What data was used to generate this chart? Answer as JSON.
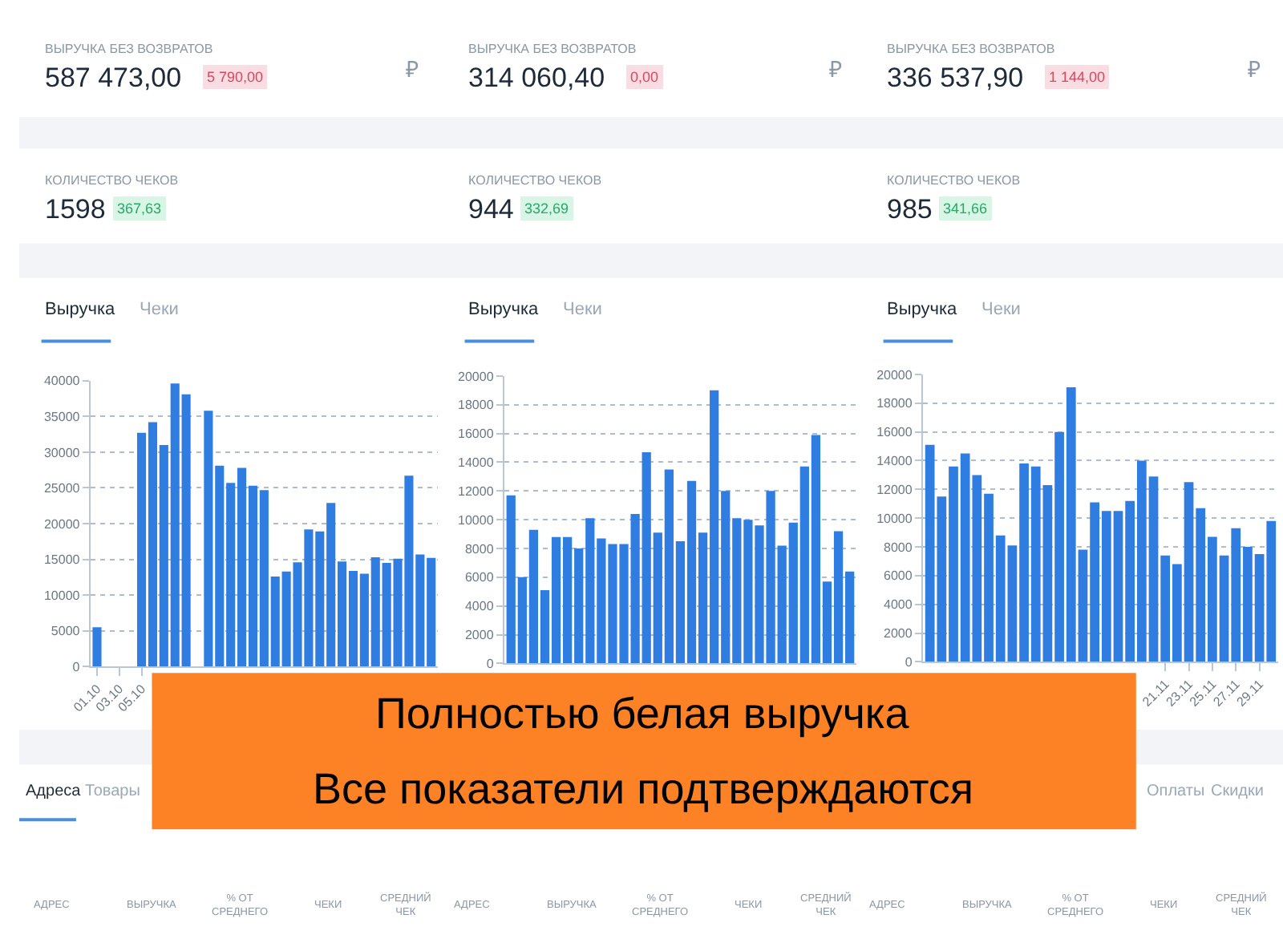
{
  "chart_data": [
    {
      "type": "other",
      "annotations": [
        "ВЫРУЧКА БЕЗ ВОЗВРАТОВ",
        "587 473,00",
        "5 790,00",
        "₽",
        "КОЛИЧЕСТВО ЧЕКОВ",
        "1598",
        "367,63"
      ]
    },
    {
      "type": "other",
      "annotations": [
        "ВЫРУЧКА БЕЗ ВОЗВРАТОВ",
        "314 060,40",
        "0,00",
        "₽",
        "КОЛИЧЕСТВО ЧЕКОВ",
        "944",
        "332,69"
      ]
    },
    {
      "type": "other",
      "annotations": [
        "ВЫРУЧКА БЕЗ ВОЗВРАТОВ",
        "336 537,90",
        "1 144,00",
        "₽",
        "КОЛИЧЕСТВО ЧЕКОВ",
        "985",
        "341,66"
      ]
    },
    {
      "type": "bar",
      "title": "Выручка",
      "annotations": [
        "Чеки"
      ],
      "color": "#2f7de1",
      "grid": "y",
      "ylim": [
        0,
        40000
      ],
      "yticks": [
        0,
        5000,
        10000,
        15000,
        20000,
        25000,
        30000,
        35000,
        40000
      ],
      "categories": [
        "01.10",
        null,
        "03.10",
        null,
        "05.10",
        null,
        null,
        null,
        null,
        null,
        null,
        null,
        null,
        null,
        null,
        null,
        null,
        null,
        null,
        null,
        null,
        null,
        null,
        null,
        null,
        null,
        null,
        null,
        null,
        null,
        null
      ],
      "values": [
        5500,
        0,
        0,
        0,
        32700,
        34200,
        31000,
        39600,
        38100,
        0,
        35800,
        28100,
        25700,
        27800,
        25300,
        24700,
        12600,
        13300,
        14600,
        19200,
        18900,
        22900,
        14700,
        13400,
        13000,
        15300,
        14500,
        15100,
        26700,
        15700,
        15200
      ]
    },
    {
      "type": "bar",
      "title": "Выручка",
      "annotations": [
        "Чеки"
      ],
      "color": "#2f7de1",
      "grid": "y",
      "ylim": [
        0,
        20000
      ],
      "yticks": [
        0,
        2000,
        4000,
        6000,
        8000,
        10000,
        12000,
        14000,
        16000,
        18000,
        20000
      ],
      "categories": [
        null,
        null,
        null,
        null,
        null,
        null,
        null,
        null,
        null,
        null,
        null,
        null,
        null,
        null,
        null,
        null,
        null,
        null,
        null,
        null,
        null,
        null,
        null,
        null,
        null,
        null,
        null,
        null,
        null,
        null,
        null
      ],
      "values": [
        11700,
        6000,
        9300,
        5100,
        8800,
        8800,
        8000,
        10100,
        8700,
        8300,
        8300,
        10400,
        14700,
        9100,
        13500,
        8500,
        12700,
        9100,
        19000,
        12000,
        10100,
        10000,
        9600,
        12000,
        8200,
        9800,
        13700,
        15900,
        5700,
        9200,
        6400
      ]
    },
    {
      "type": "bar",
      "title": "Выручка",
      "annotations": [
        "Чеки"
      ],
      "color": "#2f7de1",
      "grid": "y",
      "ylim": [
        0,
        20000
      ],
      "yticks": [
        0,
        2000,
        4000,
        6000,
        8000,
        10000,
        12000,
        14000,
        16000,
        18000,
        20000
      ],
      "categories": [
        null,
        null,
        null,
        null,
        null,
        null,
        null,
        null,
        null,
        null,
        null,
        null,
        null,
        null,
        null,
        null,
        null,
        null,
        null,
        null,
        "21.11",
        null,
        "23.11",
        null,
        "25.11",
        null,
        "27.11",
        null,
        "29.11",
        null
      ],
      "values": [
        15100,
        11500,
        13600,
        14500,
        13000,
        11700,
        8800,
        8100,
        13800,
        13600,
        12300,
        16000,
        19100,
        7800,
        11100,
        10500,
        10500,
        11200,
        14000,
        12900,
        7400,
        6800,
        12500,
        10700,
        8700,
        7400,
        9300,
        8000,
        7500,
        9800
      ]
    },
    {
      "type": "other",
      "title": "Полностью белая выручка",
      "subtitle": "Все показатели подтверждаются",
      "color": "#fd8226"
    },
    {
      "type": "other",
      "annotations": [
        "Адреса",
        "Товары",
        "Оплаты",
        "Скидки",
        "АДРЕС",
        "ВЫРУЧКА",
        "% ОТ СРЕДНЕГО",
        "ЧЕКИ",
        "СРЕДНИЙ ЧЕК",
        "АДРЕС",
        "ВЫРУЧКА",
        "% ОТ СРЕДНЕГО",
        "ЧЕКИ",
        "СРЕДНИЙ ЧЕК",
        "АДРЕС",
        "ВЫРУЧКА",
        "% ОТ СРЕДНЕГО",
        "ЧЕКИ",
        "СРЕДНИЙ ЧЕК"
      ]
    }
  ]
}
